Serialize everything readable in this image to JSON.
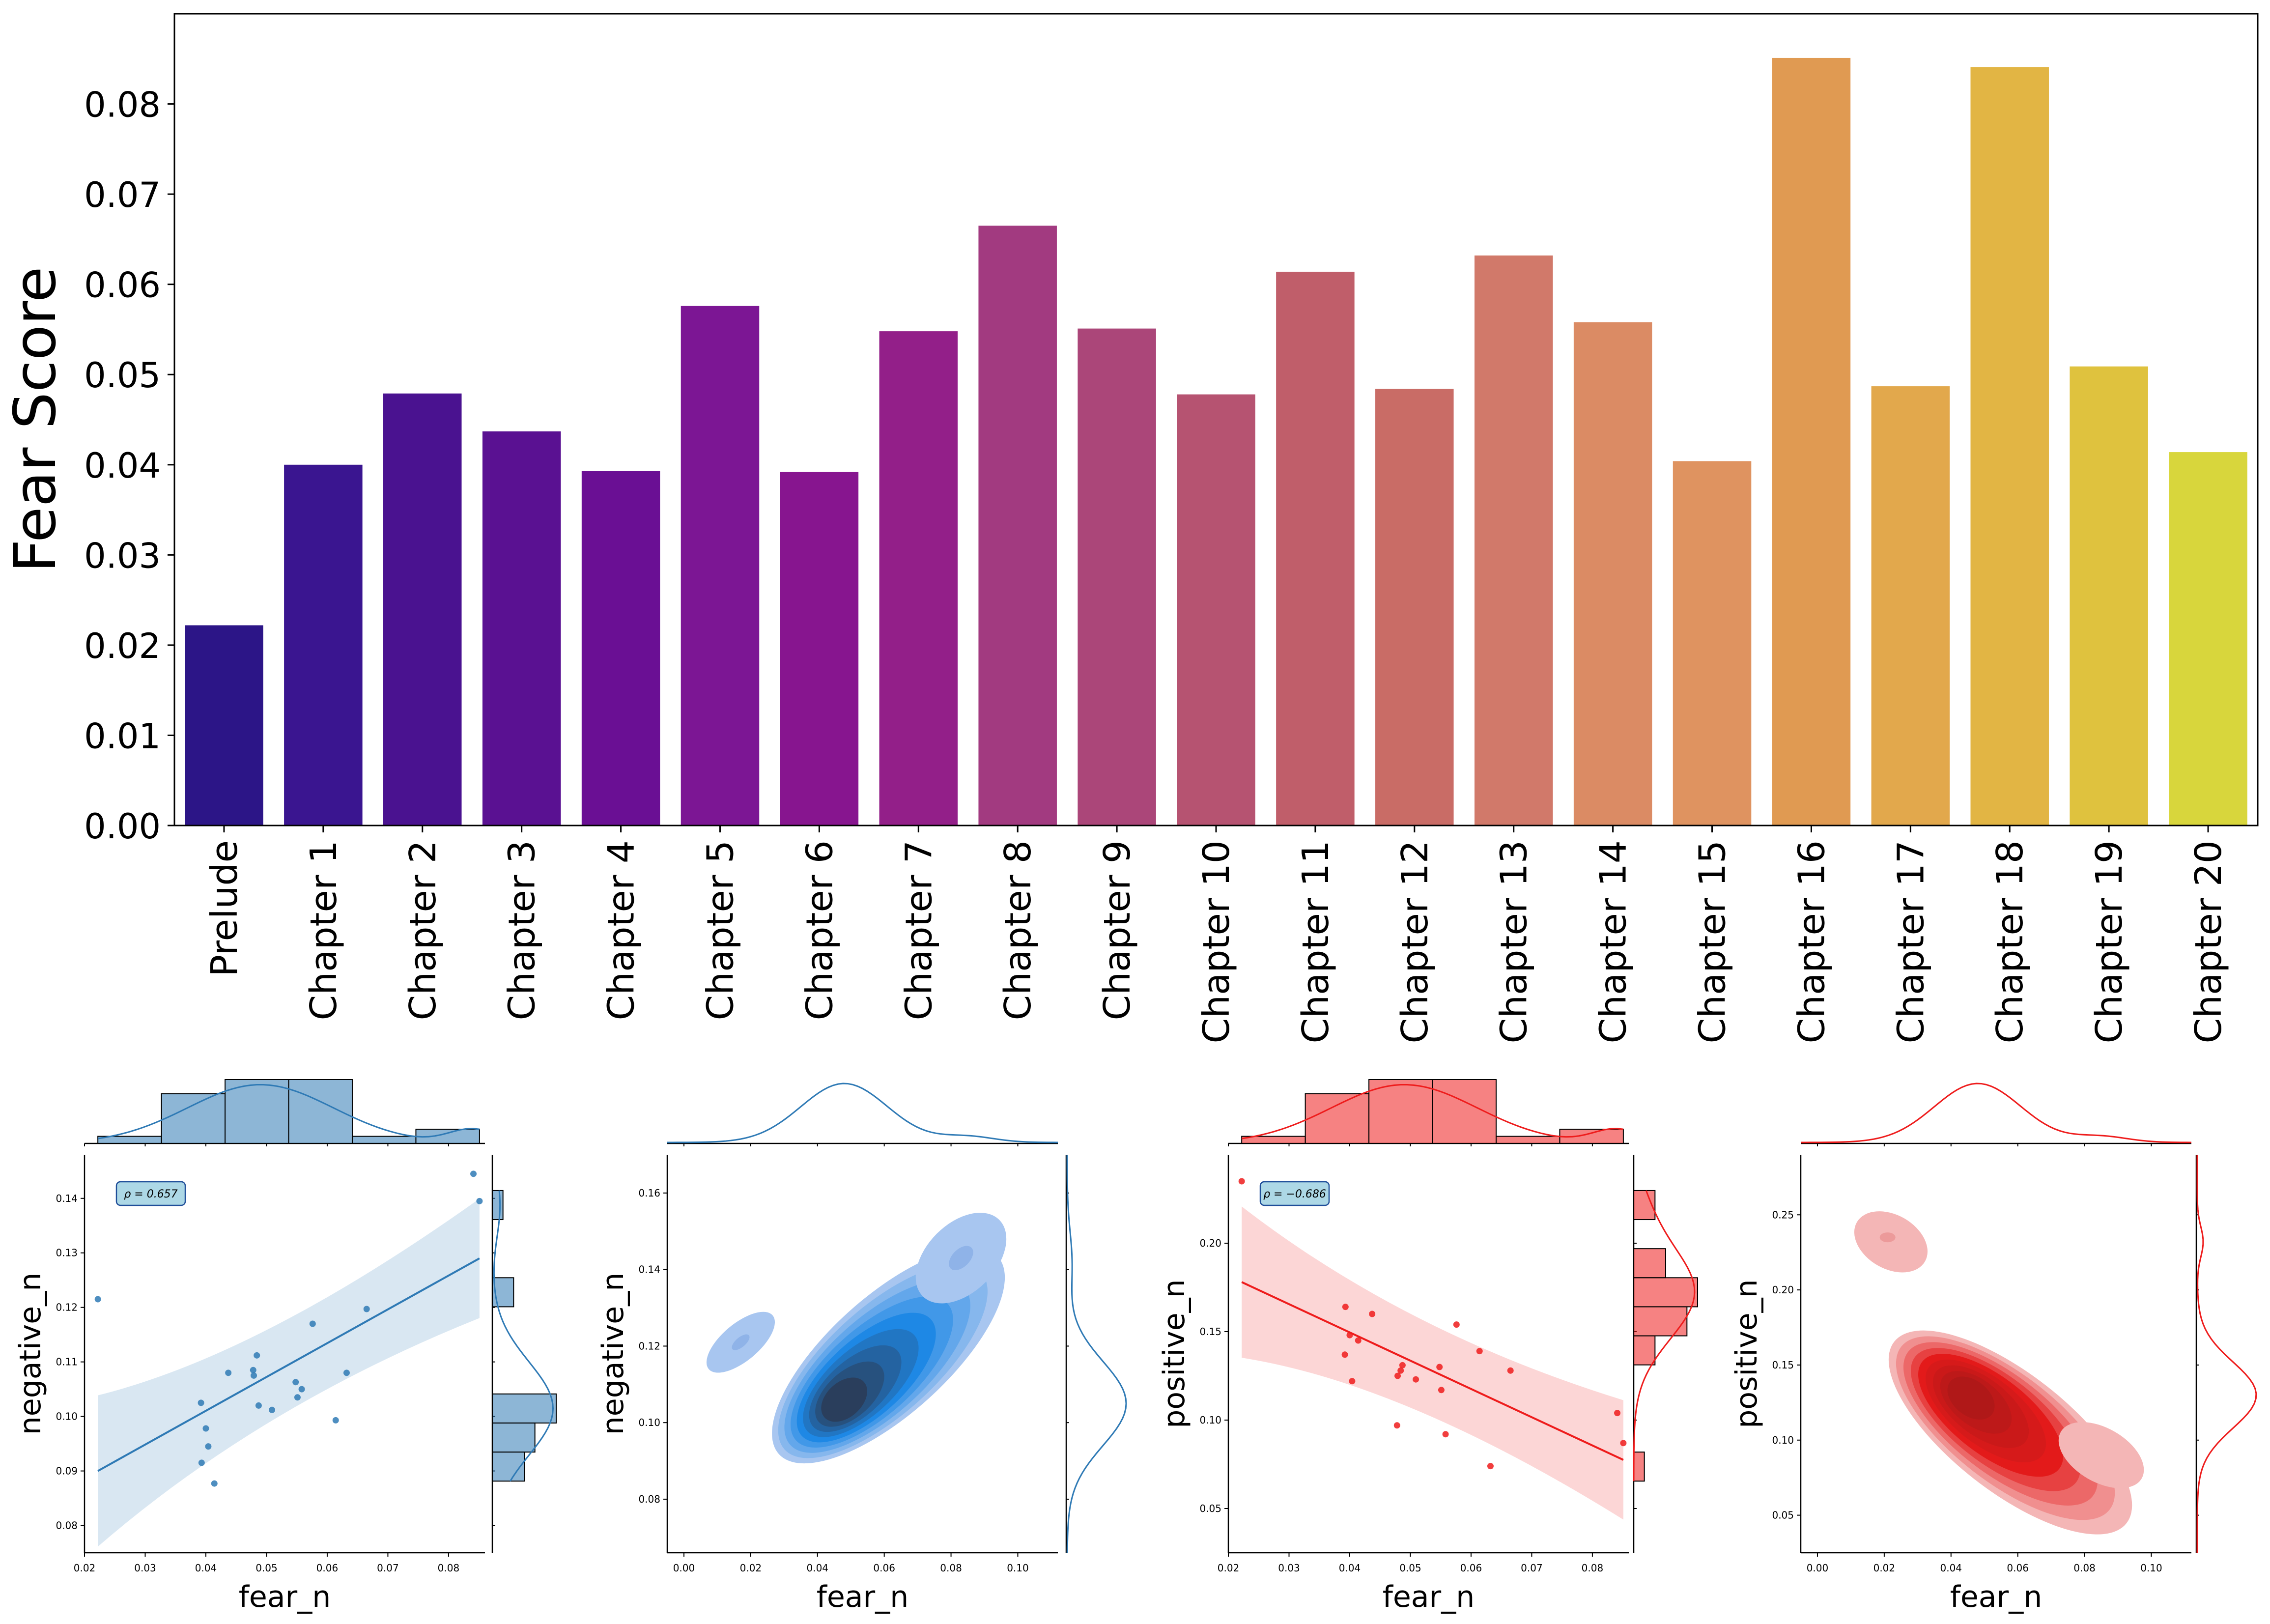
{
  "chart_data": [
    {
      "type": "bar",
      "ylabel": "Fear Score",
      "xlabel": "",
      "ylim": [
        0,
        0.09
      ],
      "yticks": [
        "0.00",
        "0.01",
        "0.02",
        "0.03",
        "0.04",
        "0.05",
        "0.06",
        "0.07",
        "0.08"
      ],
      "categories": [
        "Prelude",
        "Chapter 1",
        "Chapter 2",
        "Chapter 3",
        "Chapter 4",
        "Chapter 5",
        "Chapter 6",
        "Chapter 7",
        "Chapter 8",
        "Chapter 9",
        "Chapter 10",
        "Chapter 11",
        "Chapter 12",
        "Chapter 13",
        "Chapter 14",
        "Chapter 15",
        "Chapter 16",
        "Chapter 17",
        "Chapter 18",
        "Chapter 19",
        "Chapter 20"
      ],
      "values": [
        0.0222,
        0.04,
        0.0479,
        0.0437,
        0.0393,
        0.0576,
        0.0392,
        0.0548,
        0.0665,
        0.0551,
        0.0478,
        0.0614,
        0.0484,
        0.0632,
        0.0558,
        0.0404,
        0.0851,
        0.0487,
        0.0841,
        0.0509,
        0.0414
      ],
      "colors": [
        "#2c1587",
        "#3a1590",
        "#4a1290",
        "#5a1192",
        "#6a0f94",
        "#7c1694",
        "#87158f",
        "#931f89",
        "#a23a80",
        "#ab4679",
        "#b65371",
        "#c05e6a",
        "#c96c66",
        "#d1796a",
        "#db8b64",
        "#df9360",
        "#e09a52",
        "#e2a84c",
        "#e2b544",
        "#dfc23e",
        "#d8d63c"
      ]
    },
    {
      "type": "scatter",
      "xlabel": "fear_n",
      "ylabel": "negative_n",
      "annotation": "$\\rho = 0.657$",
      "annotation_display": "ρ = 0.657",
      "xlim": [
        0.02,
        0.086
      ],
      "ylim": [
        0.075,
        0.148
      ],
      "xticks": [
        "0.02",
        "0.03",
        "0.04",
        "0.05",
        "0.06",
        "0.07",
        "0.08"
      ],
      "yticks": [
        "0.08",
        "0.09",
        "0.10",
        "0.11",
        "0.12",
        "0.13",
        "0.14"
      ],
      "x": [
        0.0222,
        0.04,
        0.0479,
        0.0437,
        0.0393,
        0.0576,
        0.0392,
        0.0548,
        0.0665,
        0.0551,
        0.0478,
        0.0614,
        0.0484,
        0.0632,
        0.0558,
        0.0404,
        0.0851,
        0.0487,
        0.0841,
        0.0509,
        0.0414
      ],
      "y": [
        0.1215,
        0.0978,
        0.1075,
        0.108,
        0.0915,
        0.117,
        0.1025,
        0.1063,
        0.1197,
        0.1035,
        0.1085,
        0.0993,
        0.1112,
        0.108,
        0.105,
        0.0945,
        0.1395,
        0.102,
        0.1445,
        0.1012,
        0.0877
      ],
      "regression_line": {
        "x": [
          0.0222,
          0.0851
        ],
        "y": [
          0.09,
          0.129
        ]
      },
      "top_histogram_counts": [
        1,
        7,
        9,
        9,
        1,
        2
      ],
      "right_histogram_counts": [
        1,
        0,
        0,
        2,
        0,
        0,
        0,
        6,
        4,
        3
      ],
      "color": "#2f7ab5"
    },
    {
      "type": "kde",
      "xlabel": "fear_n",
      "ylabel": "negative_n",
      "xlim": [
        -0.005,
        0.112
      ],
      "ylim": [
        0.066,
        0.17
      ],
      "xticks": [
        "0.00",
        "0.02",
        "0.04",
        "0.06",
        "0.08",
        "0.10"
      ],
      "yticks": [
        "0.08",
        "0.10",
        "0.12",
        "0.14",
        "0.16"
      ],
      "mode": {
        "x": 0.048,
        "y": 0.106
      },
      "color": "#2f7ab5"
    },
    {
      "type": "scatter",
      "xlabel": "fear_n",
      "ylabel": "positive_n",
      "annotation": "$\\rho = -0.686$",
      "annotation_display": "ρ = −0.686",
      "xlim": [
        0.02,
        0.086
      ],
      "ylim": [
        0.025,
        0.25
      ],
      "xticks": [
        "0.02",
        "0.03",
        "0.04",
        "0.05",
        "0.06",
        "0.07",
        "0.08"
      ],
      "yticks": [
        "0.05",
        "0.10",
        "0.15",
        "0.20"
      ],
      "x": [
        0.0222,
        0.04,
        0.0479,
        0.0437,
        0.0393,
        0.0576,
        0.0392,
        0.0548,
        0.0665,
        0.0551,
        0.0478,
        0.0614,
        0.0484,
        0.0632,
        0.0558,
        0.0404,
        0.0851,
        0.0487,
        0.0841,
        0.0509,
        0.0414
      ],
      "y": [
        0.235,
        0.148,
        0.125,
        0.16,
        0.164,
        0.154,
        0.137,
        0.13,
        0.128,
        0.117,
        0.097,
        0.139,
        0.128,
        0.074,
        0.092,
        0.122,
        0.087,
        0.131,
        0.104,
        0.123,
        0.145
      ],
      "regression_line": {
        "x": [
          0.0222,
          0.0851
        ],
        "y": [
          0.178,
          0.0775
        ]
      },
      "top_histogram_counts": [
        1,
        7,
        9,
        9,
        1,
        2
      ],
      "right_histogram_counts": [
        2,
        0,
        3,
        6,
        5,
        2,
        0,
        0,
        0,
        1
      ],
      "color": "#ee1c1c"
    },
    {
      "type": "kde",
      "xlabel": "fear_n",
      "ylabel": "positive_n",
      "xlim": [
        -0.005,
        0.112
      ],
      "ylim": [
        0.025,
        0.29
      ],
      "xticks": [
        "0.00",
        "0.02",
        "0.04",
        "0.06",
        "0.08",
        "0.10"
      ],
      "yticks": [
        "0.05",
        "0.10",
        "0.15",
        "0.20",
        "0.25"
      ],
      "mode": {
        "x": 0.046,
        "y": 0.128
      },
      "color": "#ee1c1c"
    }
  ]
}
